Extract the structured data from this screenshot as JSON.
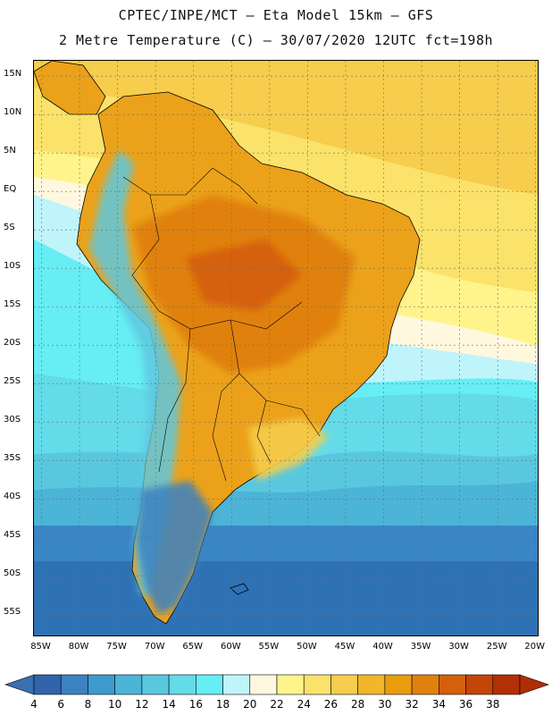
{
  "header": {
    "line1": "CPTEC/INPE/MCT –  Eta Model 15km – GFS",
    "line2": "2 Metre Temperature (C) – 30/07/2020 12UTC fct=198h"
  },
  "map": {
    "lat_ticks": [
      "15N",
      "10N",
      "5N",
      "EQ",
      "5S",
      "10S",
      "15S",
      "20S",
      "25S",
      "30S",
      "35S",
      "40S",
      "45S",
      "50S",
      "55S"
    ],
    "lon_ticks": [
      "85W",
      "80W",
      "75W",
      "70W",
      "65W",
      "60W",
      "55W",
      "50W",
      "45W",
      "40W",
      "35W",
      "30W",
      "25W",
      "20W"
    ],
    "bounds": {
      "lon_min": -86,
      "lon_max": -19.5,
      "lat_min": -58,
      "lat_max": 17
    }
  },
  "legend": {
    "labels": [
      "4",
      "6",
      "8",
      "10",
      "12",
      "14",
      "16",
      "18",
      "20",
      "22",
      "24",
      "26",
      "28",
      "30",
      "32",
      "34",
      "36",
      "38"
    ],
    "colors": [
      "#3164ab",
      "#3a82c2",
      "#3d9ccd",
      "#4cb4d6",
      "#59c8df",
      "#63dbe9",
      "#66eef4",
      "#bff4fb",
      "#fff8df",
      "#fff48c",
      "#fbe26a",
      "#f6cd4c",
      "#f1b629",
      "#e99d0e",
      "#e1810d",
      "#d5600b",
      "#c54508",
      "#b32f06"
    ],
    "left_arrow_color": "#3a6fb0",
    "right_arrow_color": "#b02e06"
  },
  "colors": {
    "tropical_ocean": "#f8dc60",
    "warm_land": "#eba21a",
    "hot_land": "#e07a10",
    "cold_ocean": "#2f72b4",
    "coast_line": "#000000"
  }
}
